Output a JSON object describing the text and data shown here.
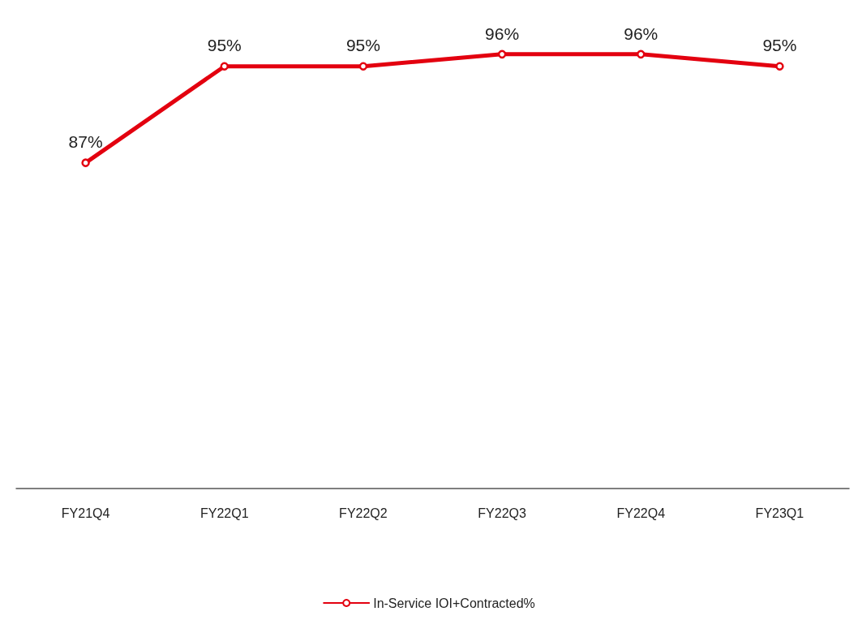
{
  "chart_data": {
    "type": "line",
    "categories": [
      "FY21Q4",
      "FY22Q1",
      "FY22Q2",
      "FY22Q3",
      "FY22Q4",
      "FY23Q1"
    ],
    "series": [
      {
        "name": "In-Service IOI+Contracted%",
        "color": "#e3000f",
        "values": [
          87,
          95,
          95,
          96,
          96,
          95
        ],
        "value_labels": [
          "87%",
          "95%",
          "95%",
          "96%",
          "96%",
          "95%"
        ]
      }
    ],
    "tick_labels": "x",
    "grid": false,
    "legend": "bottom",
    "marker": "circle",
    "line_style": "solid"
  }
}
